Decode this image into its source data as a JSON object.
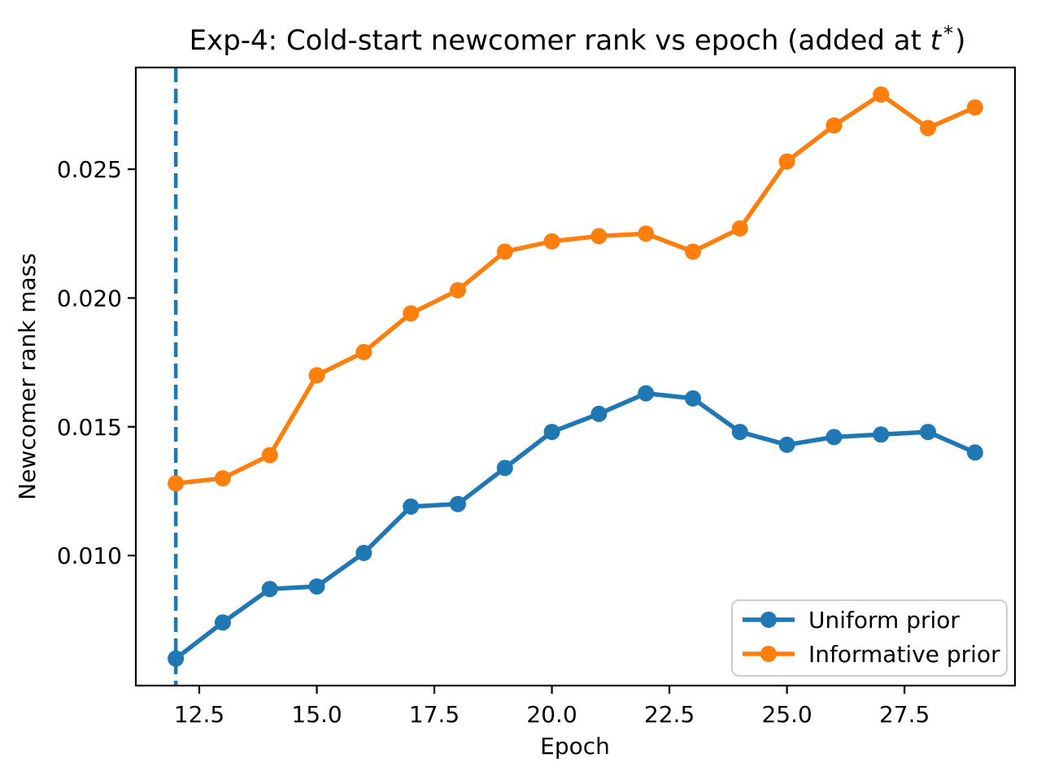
{
  "figure": {
    "title": {
      "prefix": "Exp-4: Cold-start newcomer rank vs epoch (added at ",
      "math_var": "t",
      "math_sup": "*",
      "suffix": ")"
    },
    "xlabel": "Epoch",
    "ylabel": "Newcomer rank mass"
  },
  "legend": {
    "items": [
      {
        "label": "Uniform prior",
        "color": "#1f77b4"
      },
      {
        "label": "Informative prior",
        "color": "#ff7f0e"
      }
    ]
  },
  "chart_data": {
    "type": "line",
    "title": "Exp-4: Cold-start newcomer rank vs epoch (added at t*)",
    "xlabel": "Epoch",
    "ylabel": "Newcomer rank mass",
    "x": [
      12,
      13,
      14,
      15,
      16,
      17,
      18,
      19,
      20,
      21,
      22,
      23,
      24,
      25,
      26,
      27,
      28,
      29
    ],
    "series": [
      {
        "name": "Uniform prior",
        "color": "#1f77b4",
        "marker": "circle",
        "values": [
          0.006,
          0.0074,
          0.0087,
          0.0088,
          0.0101,
          0.0119,
          0.012,
          0.0134,
          0.0148,
          0.0155,
          0.0163,
          0.0161,
          0.0148,
          0.0143,
          0.0146,
          0.0147,
          0.0148,
          0.014
        ]
      },
      {
        "name": "Informative prior",
        "color": "#ff7f0e",
        "marker": "circle",
        "values": [
          0.0128,
          0.013,
          0.0139,
          0.017,
          0.0179,
          0.0194,
          0.0203,
          0.0218,
          0.0222,
          0.0224,
          0.0225,
          0.0218,
          0.0227,
          0.0253,
          0.0267,
          0.0279,
          0.0266,
          0.0274
        ]
      }
    ],
    "vline": {
      "x": 12,
      "style": "dashed",
      "color": "#1f77b4"
    },
    "xlim": [
      11.15,
      29.85
    ],
    "ylim": [
      0.00495,
      0.02895
    ],
    "xticks": {
      "values": [
        12.5,
        15.0,
        17.5,
        20.0,
        22.5,
        25.0,
        27.5
      ],
      "labels": [
        "12.5",
        "15.0",
        "17.5",
        "20.0",
        "22.5",
        "25.0",
        "27.5"
      ]
    },
    "yticks": {
      "values": [
        0.01,
        0.015,
        0.02,
        0.025
      ],
      "labels": [
        "0.010",
        "0.015",
        "0.020",
        "0.025"
      ]
    },
    "grid": false,
    "legend_position": "lower right",
    "axes_color": "#000000",
    "background_color": "#ffffff"
  }
}
